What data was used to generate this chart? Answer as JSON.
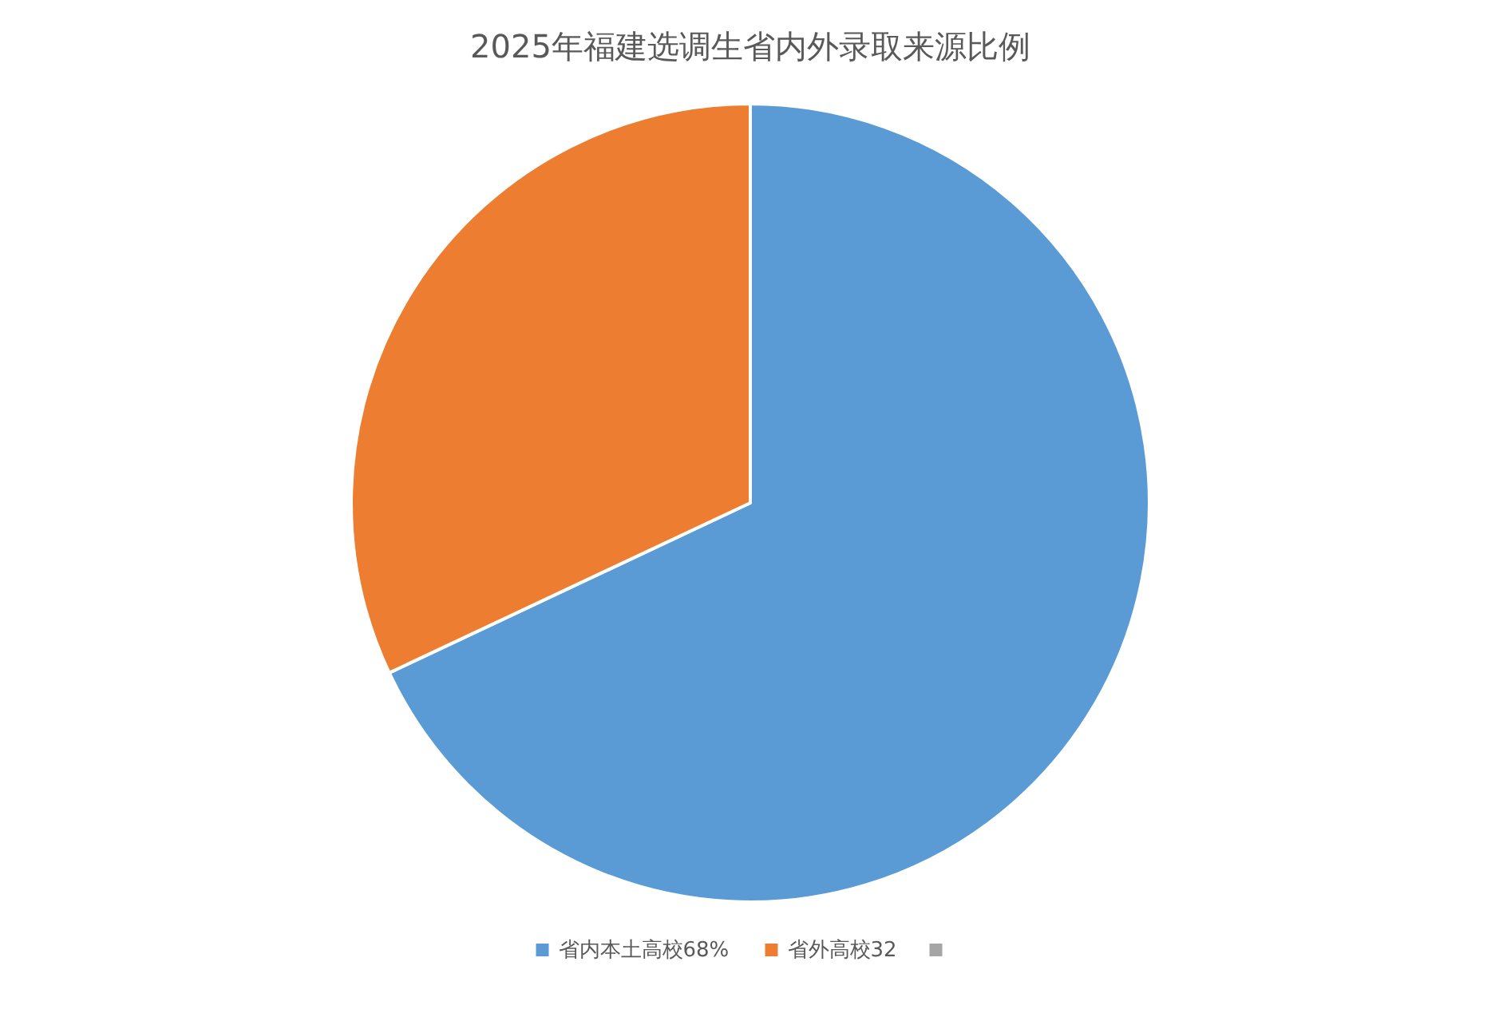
{
  "chart_data": {
    "type": "pie",
    "title": "2025年福建选调生省内外录取来源比例",
    "categories": [
      "省内本土高校68%",
      "省外高校32",
      null
    ],
    "values": [
      68,
      32,
      0
    ],
    "colors": [
      "#5b9bd5",
      "#ed7d31",
      "#a5a5a5"
    ],
    "legend": "bottom"
  }
}
